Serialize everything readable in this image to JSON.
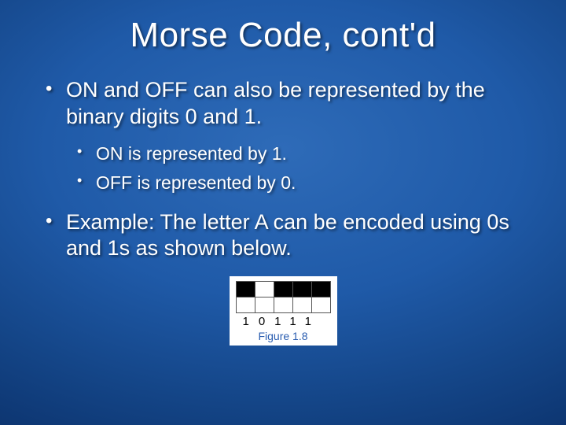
{
  "title": "Morse Code, cont'd",
  "bullets": [
    {
      "text": "ON and OFF can also be represented by the binary digits 0 and 1.",
      "sub": [
        {
          "text": "ON is represented by 1."
        },
        {
          "text": "OFF is represented by 0."
        }
      ]
    },
    {
      "text": "Example: The letter A can be encoded using 0s and 1s as shown below."
    }
  ],
  "figure": {
    "caption": "Figure 1.8",
    "digits": "10111",
    "grid": {
      "rows": 2,
      "cols": 5,
      "cell_on_color": "#000000",
      "cell_off_color": "#ffffff",
      "border_color": "#555555",
      "cells": [
        [
          1,
          0,
          1,
          1,
          1
        ],
        [
          0,
          0,
          0,
          0,
          0
        ]
      ]
    }
  },
  "style": {
    "title_fontsize": 44,
    "bullet_fontsize": 27,
    "sub_bullet_fontsize": 23,
    "text_color": "#ffffff",
    "background_gradient": [
      "#2e6bb8",
      "#1f5aa8",
      "#144587",
      "#0a2f68",
      "#051f4a"
    ],
    "caption_color": "#2a5db0"
  }
}
